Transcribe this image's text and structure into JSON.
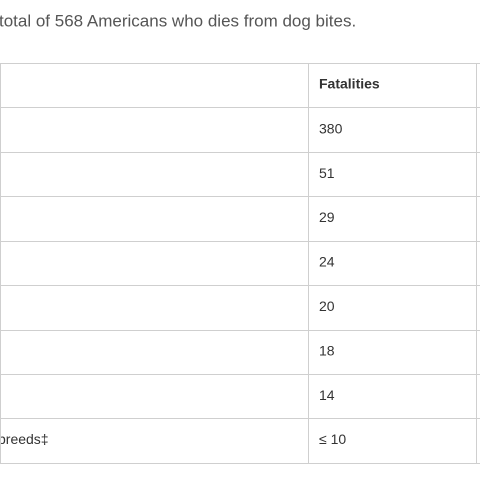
{
  "intro": "total of 568 Americans who dies from dog bites.",
  "table": {
    "header": "Fatalities",
    "rows": [
      {
        "fatalities": 380
      },
      {
        "fatalities": 51
      },
      {
        "fatalities": 29
      },
      {
        "fatalities": 24
      },
      {
        "fatalities": 20
      },
      {
        "fatalities": 18
      },
      {
        "fatalities": 14
      },
      {
        "label": "breeds‡",
        "fatalities": "≤ 10"
      }
    ]
  }
}
